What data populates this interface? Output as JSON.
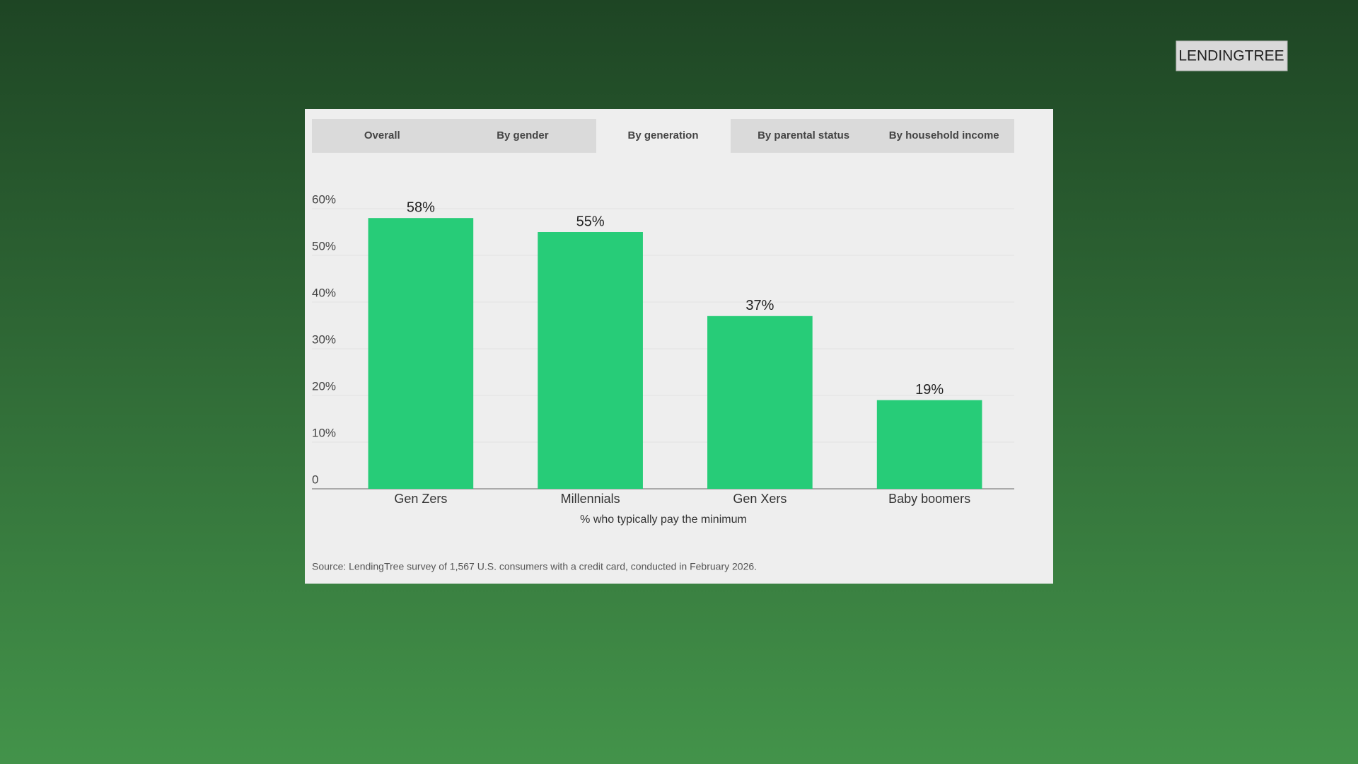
{
  "logo": "LENDINGTREE",
  "tabs": [
    "Overall",
    "By gender",
    "By generation",
    "By parental status",
    "By household income"
  ],
  "chart_data": {
    "type": "bar",
    "categories": [
      "Gen Zers",
      "Millennials",
      "Gen Xers",
      "Baby boomers"
    ],
    "values": [
      58,
      55,
      37,
      19
    ],
    "value_labels": [
      "58%",
      "55%",
      "37%",
      "19%"
    ],
    "color": "#27cc78",
    "x_label": "% who typically pay the minimum",
    "ylim": [
      0,
      60
    ],
    "yticks": [
      0,
      {
        "value": 10,
        "label": "10%"
      },
      {
        "value": 20,
        "label": "20%"
      },
      {
        "value": 30,
        "label": "30%"
      },
      {
        "value": 40,
        "label": "40%"
      },
      {
        "value": 50,
        "label": "50%"
      },
      {
        "value": 60,
        "label": "60%"
      }
    ],
    "grid": true,
    "source": "Source: LendingTree survey of 1,567 U.S. consumers with a credit card, conducted in February 2026."
  }
}
